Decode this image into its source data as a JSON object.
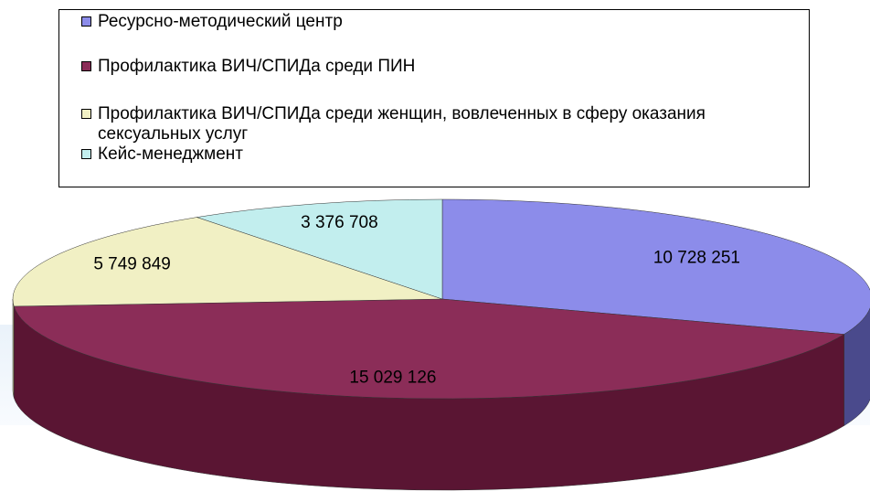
{
  "chart_data": {
    "type": "pie",
    "categories": [
      "Ресурсно-методический центр",
      "Профилактика ВИЧ/СПИДа среди ПИН",
      "Профилактика ВИЧ/СПИДа среди женщин, вовлеченных в сферу оказания сексуальных услуг",
      "Кейс-менеджмент"
    ],
    "values": [
      10728251,
      15029126,
      5749849,
      3376708
    ],
    "value_labels": [
      "10 728 251",
      "15 029 126",
      "5 749 849",
      "3 376 708"
    ],
    "colors": [
      "#8c8cea",
      "#8b2d58",
      "#f1f0c4",
      "#c2eeee"
    ],
    "side_colors": [
      "#4a4a8c",
      "#5a1533",
      "#a9a780",
      "#7fb0b0"
    ]
  }
}
